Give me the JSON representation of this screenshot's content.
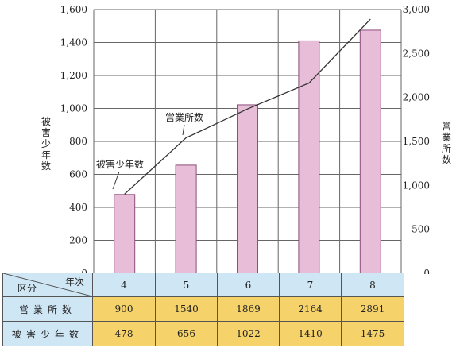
{
  "chart_data": {
    "type": "bar+line",
    "categories": [
      "4",
      "5",
      "6",
      "7",
      "8"
    ],
    "series": [
      {
        "name": "被害少年数",
        "type": "bar",
        "axis": "left",
        "values": [
          478,
          656,
          1022,
          1410,
          1475
        ]
      },
      {
        "name": "営業所数",
        "type": "line",
        "axis": "right",
        "values": [
          900,
          1540,
          1869,
          2164,
          2891
        ]
      }
    ],
    "y_left": {
      "label": "被害少年数",
      "lim": [
        0,
        1600
      ],
      "ticks": [
        "0",
        "200",
        "400",
        "600",
        "800",
        "1,000",
        "1,200",
        "1,400",
        "1,600"
      ]
    },
    "y_right": {
      "label": "営業所数",
      "lim": [
        0,
        3000
      ],
      "ticks": [
        "0",
        "500",
        "1,000",
        "1,500",
        "2,000",
        "2,500",
        "3,000"
      ]
    },
    "annotations": [
      "営業所数",
      "被害少年数"
    ],
    "grid": true,
    "colors": {
      "bar_fill": "#e7bdd8",
      "bar_stroke": "#8c4f7a",
      "line": "#333333",
      "grid": "#666666"
    }
  },
  "table": {
    "corner_top": "年次",
    "corner_bottom": "区分",
    "years": [
      "4",
      "5",
      "6",
      "7",
      "8"
    ],
    "rows": [
      {
        "label": "営業所数",
        "values": [
          "900",
          "1540",
          "1869",
          "2164",
          "2891"
        ]
      },
      {
        "label": "被害少年数",
        "values": [
          "478",
          "656",
          "1022",
          "1410",
          "1475"
        ]
      }
    ]
  }
}
